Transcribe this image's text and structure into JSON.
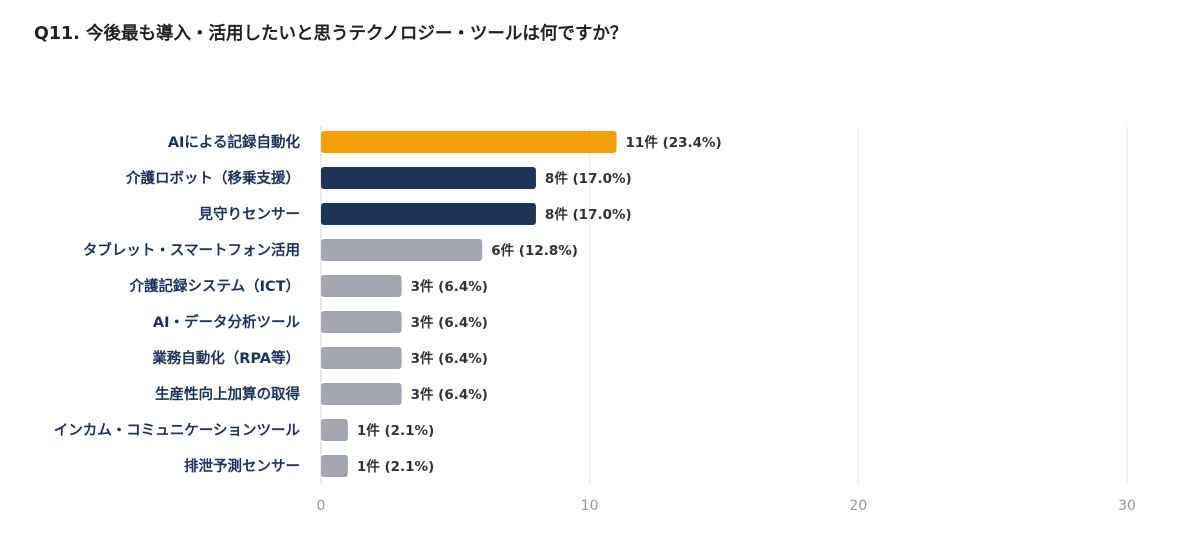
{
  "chart_data": {
    "type": "bar",
    "orientation": "horizontal",
    "title": "Q11. 今後最も導入・活用したいと思うテクノロジー・ツールは何ですか？",
    "xlabel": "",
    "ylabel": "",
    "xlim": [
      0,
      30
    ],
    "xticks": [
      "0",
      "10",
      "20",
      "30"
    ],
    "grid": true,
    "legend": "none",
    "categories": [
      "AIによる記録自動化",
      "介護ロボット（移乗支援）",
      "見守りセンサー",
      "タブレット・スマートフォン活用",
      "介護記録システム（ICT）",
      "AI・データ分析ツール",
      "業務自動化（RPA等）",
      "生産性向上加算の取得",
      "インカム・コミュニケーションツール",
      "排泄予測センサー"
    ],
    "values": [
      11,
      8,
      8,
      6,
      3,
      3,
      3,
      3,
      1,
      1
    ],
    "data_labels": [
      "11件 (23.4%)",
      "8件 (17.0%)",
      "8件 (17.0%)",
      "6件 (12.8%)",
      "3件 (6.4%)",
      "3件 (6.4%)",
      "3件 (6.4%)",
      "3件 (6.4%)",
      "1件 (2.1%)",
      "1件 (2.1%)"
    ],
    "bar_colors": [
      "#f29f0c",
      "#1e3358",
      "#1e3358",
      "#a3a5b0",
      "#a3a5b0",
      "#a3a5b0",
      "#a3a5b0",
      "#a3a5b0",
      "#a3a5b0",
      "#a3a5b0"
    ],
    "label_color": "#1e3358",
    "value_label_color": "#333333",
    "tick_color": "#999999",
    "grid_color": "#e9e9ee"
  }
}
